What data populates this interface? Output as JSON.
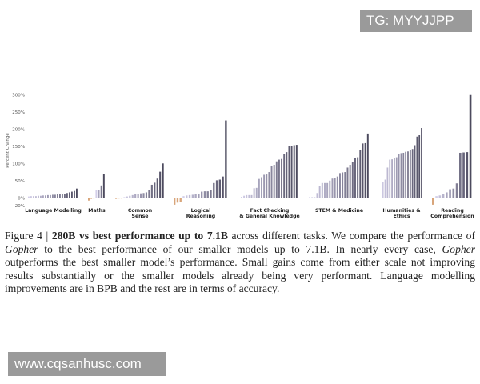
{
  "watermarks": {
    "top": "TG: MYYJJPP",
    "bottom": "www.cqsanhusc.com"
  },
  "caption": {
    "label": "Figure 4 | ",
    "bold": "280B vs best performance up to 7.1B",
    "t1": " across different tasks. We compare the performance of ",
    "i1": "Gopher",
    "t2": " to the best performance of our smaller models up to 7.1B. In nearly every case, ",
    "i2": "Gopher",
    "t3": " outperforms the best smaller model’s performance. Small gains come from either scale not improving results substantially or the smaller models already being very performant.  Language modelling improvements are in BPB and the rest are in terms of accuracy."
  },
  "chart_data": {
    "type": "bar",
    "ylabel": "Percent Change",
    "ylim": [
      -20,
      300
    ],
    "yticks": [
      "300%",
      "250%",
      "200%",
      "150%",
      "100%",
      "50%",
      "0%",
      "-20%"
    ],
    "ytick_values": [
      300,
      250,
      200,
      150,
      100,
      50,
      0,
      -20
    ],
    "colors": {
      "positive_light": "#d2cee8",
      "positive_dark": "#4c4a5e",
      "negative": "#d8a57a"
    },
    "groups": [
      {
        "name": "Language Modelling",
        "values": [
          4,
          5,
          5,
          5,
          6,
          6,
          7,
          7,
          8,
          8,
          9,
          9,
          10,
          10,
          11,
          12,
          14,
          16,
          18,
          20,
          27
        ]
      },
      {
        "name": "Maths",
        "values": [
          -8,
          -3,
          -2,
          22,
          23,
          36,
          69
        ]
      },
      {
        "name": "Common Sense",
        "values": [
          -3,
          -2,
          -2,
          2,
          4,
          6,
          8,
          10,
          12,
          13,
          14,
          16,
          22,
          38,
          44,
          56,
          76,
          100
        ]
      },
      {
        "name": "Logical Reasoning",
        "values": [
          -20,
          -14,
          -12,
          5,
          7,
          8,
          9,
          10,
          11,
          18,
          19,
          19,
          23,
          43,
          51,
          53,
          62,
          225
        ]
      },
      {
        "name": "Fact Checking & General Knowledge",
        "values": [
          3,
          6,
          8,
          8,
          8,
          28,
          29,
          55,
          60,
          67,
          68,
          75,
          93,
          96,
          106,
          111,
          113,
          127,
          133,
          150,
          151,
          153,
          154
        ]
      },
      {
        "name": "STEM & Medicine",
        "values": [
          2,
          2,
          2,
          14,
          35,
          43,
          43,
          43,
          50,
          56,
          57,
          62,
          72,
          74,
          75,
          88,
          96,
          104,
          117,
          118,
          140,
          158,
          159,
          187
        ]
      },
      {
        "name": "Humanities & Ethics",
        "values": [
          0,
          46,
          53,
          88,
          111,
          112,
          116,
          118,
          127,
          130,
          131,
          134,
          135,
          138,
          142,
          153,
          178,
          182,
          203
        ]
      },
      {
        "name": "Reading Comprehension",
        "values": [
          -20,
          5,
          7,
          10,
          16,
          25,
          27,
          42,
          131,
          132,
          133,
          299
        ]
      }
    ],
    "category_labels": [
      [
        "Language Modelling"
      ],
      [
        "Maths"
      ],
      [
        "Common",
        "Sense"
      ],
      [
        "Logical",
        "Reasoning"
      ],
      [
        "Fact Checking",
        "& General Knowledge"
      ],
      [
        "STEM & Medicine"
      ],
      [
        "Humanities &",
        "Ethics"
      ],
      [
        "Reading",
        "Comprehension"
      ]
    ]
  }
}
